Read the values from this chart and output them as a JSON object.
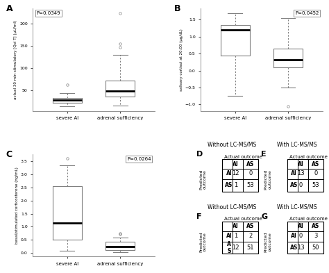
{
  "panel_A": {
    "label": "A",
    "pvalue": "P=0.0349",
    "ylabel": "actual 30 min stimulatory [Qol T] (μU/ml)",
    "xlabels": [
      "severe AI",
      "adrenal sufficiency"
    ],
    "group1": {
      "med": 28,
      "q1": 22,
      "q3": 33,
      "whislo": 14,
      "whishi": 44,
      "fliers": [
        62
      ]
    },
    "group2": {
      "med": 48,
      "q1": 36,
      "q3": 72,
      "whislo": 16,
      "whishi": 130,
      "fliers": [
        155,
        148,
        225
      ]
    }
  },
  "panel_B": {
    "label": "B",
    "pvalue": "P=0.0452",
    "ylabel": "salivary cortisol at 20:00 (μg/dL)",
    "xlabels": [
      "severe AI",
      "adrenal sufficiency"
    ],
    "group1": {
      "med": 1.2,
      "q1": 0.45,
      "q3": 1.35,
      "whislo": -0.75,
      "whishi": 1.7,
      "fliers": []
    },
    "group2": {
      "med": 0.32,
      "q1": 0.1,
      "q3": 0.65,
      "whislo": -0.5,
      "whishi": 1.55,
      "fliers": [
        -1.05
      ]
    }
  },
  "panel_C": {
    "label": "C",
    "pvalue": "P=0.0264",
    "ylabel": "basal/stimulated corticosterone (ng/mL)",
    "xlabels": [
      "severe AI",
      "adrenal sufficiency"
    ],
    "group1": {
      "med": 1.15,
      "q1": 0.5,
      "q3": 2.55,
      "whislo": 0.08,
      "whishi": 3.35,
      "fliers": [
        3.6
      ]
    },
    "group2": {
      "med": 0.25,
      "q1": 0.12,
      "q3": 0.42,
      "whislo": 0.04,
      "whishi": 0.6,
      "fliers": [
        0.75,
        0.72
      ]
    }
  },
  "panel_D": {
    "label": "D",
    "title": "Without LC-MS/MS",
    "col_header": "Actual outcome",
    "row_header": "Predicted\noutcome",
    "col_labels": [
      "AI",
      "AS"
    ],
    "row_labels": [
      "AI",
      "AS"
    ],
    "values": [
      [
        12,
        0
      ],
      [
        1,
        53
      ]
    ]
  },
  "panel_E": {
    "label": "E",
    "title": "With LC-MS/MS",
    "col_header": "Actual outcome",
    "row_header": "Predicted\noutcome",
    "col_labels": [
      "AI",
      "AS"
    ],
    "row_labels": [
      "AI",
      "AS"
    ],
    "values": [
      [
        13,
        0
      ],
      [
        0,
        53
      ]
    ]
  },
  "panel_F": {
    "label": "F",
    "title": "Without LC-MS/MS",
    "col_header": "Actual outcome",
    "row_header": "Predicted\noutcome",
    "col_labels": [
      "AI",
      "AS"
    ],
    "row_labels": [
      "AI",
      "A\nS"
    ],
    "values": [
      [
        1,
        2
      ],
      [
        12,
        51
      ]
    ]
  },
  "panel_G": {
    "label": "G",
    "title": "With LC-MS/MS",
    "col_header": "Actual outcome",
    "row_header": "Predicted\noutcome",
    "col_labels": [
      "AI",
      "AS"
    ],
    "row_labels": [
      "AI",
      "AS"
    ],
    "values": [
      [
        0,
        3
      ],
      [
        13,
        50
      ]
    ]
  }
}
